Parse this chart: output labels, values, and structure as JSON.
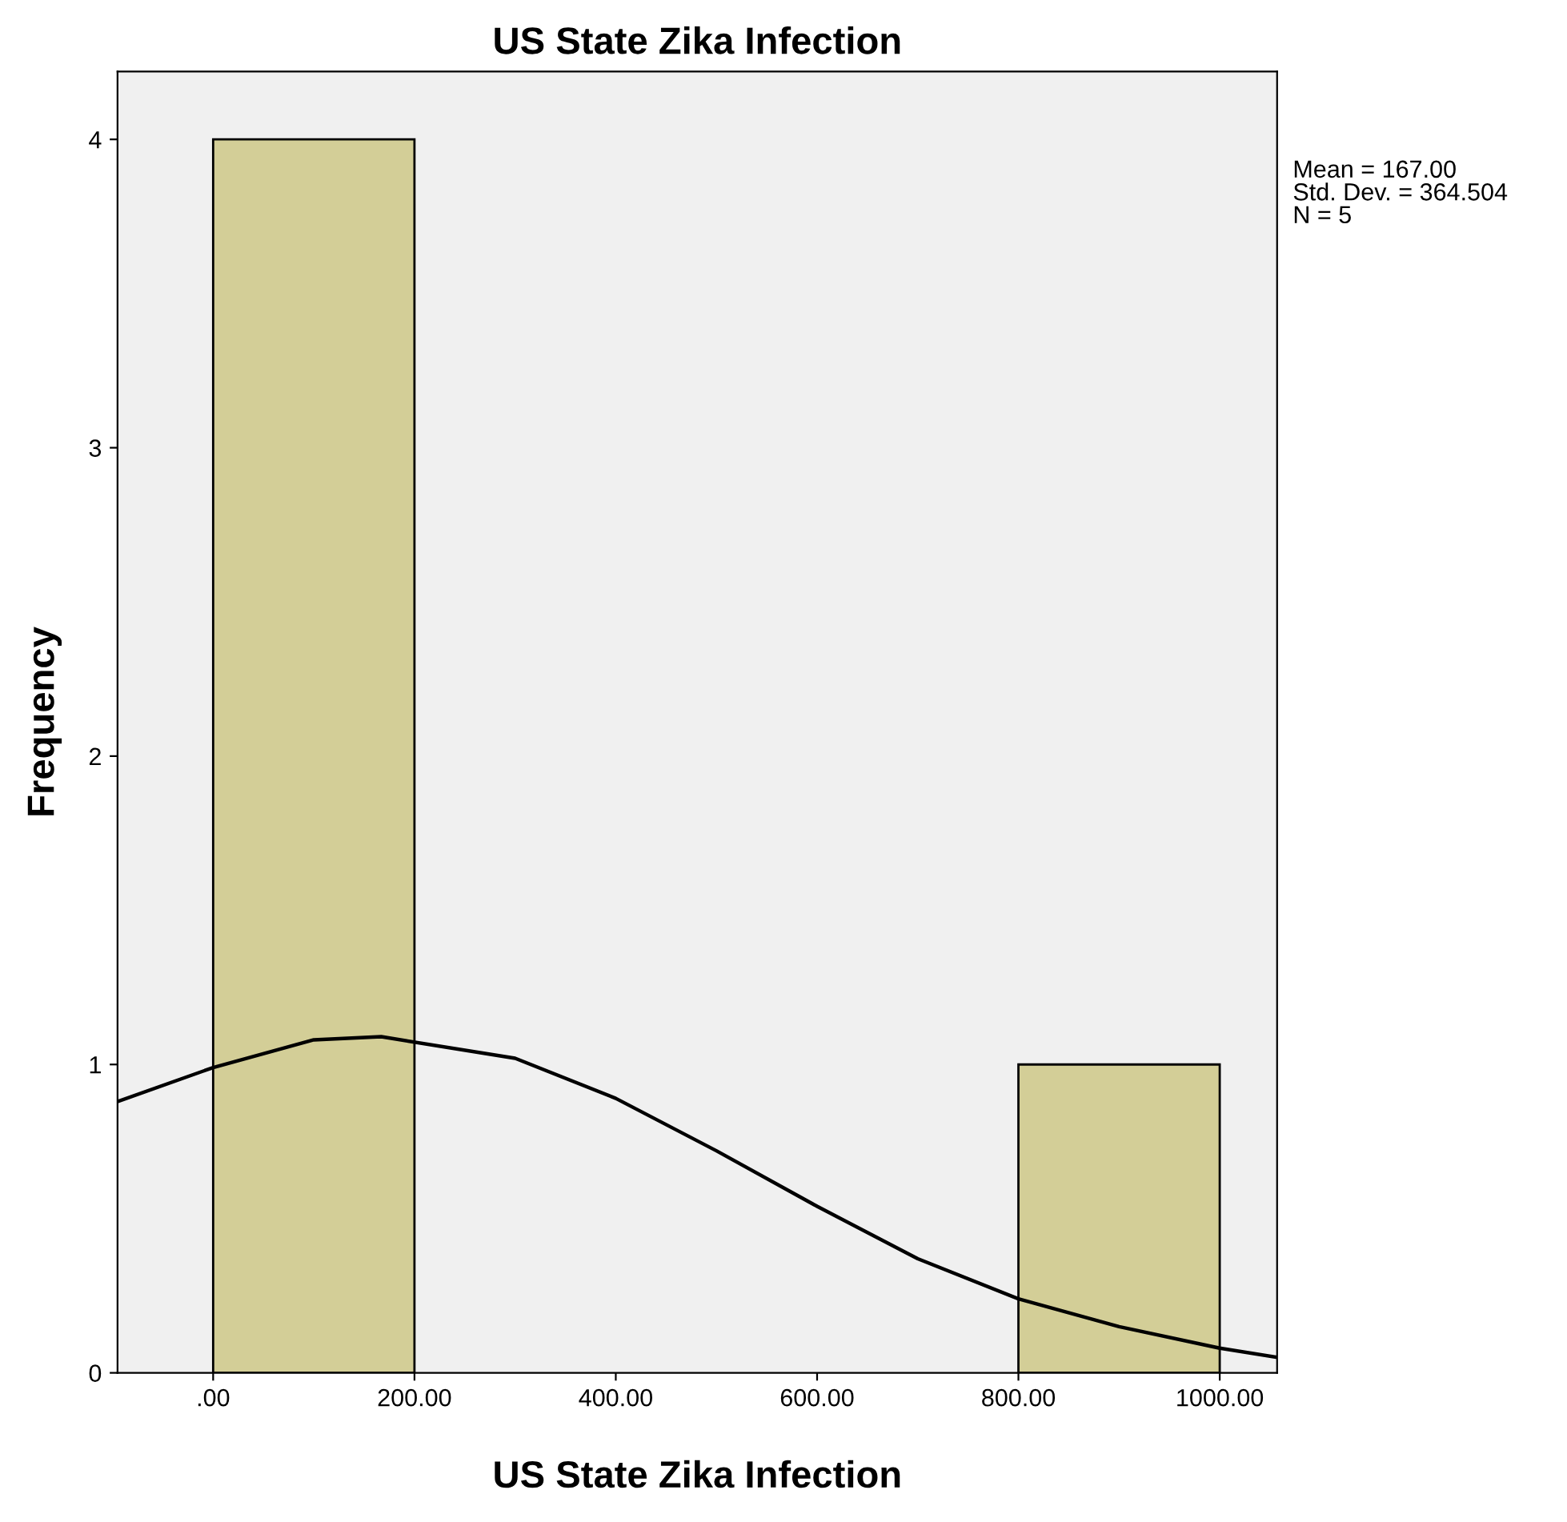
{
  "chart_data": {
    "type": "histogram",
    "title": "US State Zika Infection",
    "xlabel": "US State Zika Infection",
    "ylabel": "Frequency",
    "bins": [
      0,
      200,
      400,
      600,
      800,
      1000
    ],
    "values": [
      4,
      0,
      0,
      0,
      1
    ],
    "color": "#d3ce97",
    "series": [
      {
        "type": "line",
        "color": "#000000",
        "x": [
          -95,
          0,
          100,
          167,
          300,
          400,
          500,
          600,
          700,
          800,
          900,
          1000,
          1057
        ],
        "values": [
          0.88,
          0.99,
          1.08,
          1.09,
          1.02,
          0.89,
          0.72,
          0.54,
          0.37,
          0.24,
          0.15,
          0.08,
          0.05
        ]
      }
    ],
    "xlim": [
      -95,
      1057
    ],
    "ylim": [
      0,
      4.22
    ],
    "xticks": [
      {
        "value": 0,
        "label": ".00"
      },
      {
        "value": 200,
        "label": "200.00"
      },
      {
        "value": 400,
        "label": "400.00"
      },
      {
        "value": 600,
        "label": "600.00"
      },
      {
        "value": 800,
        "label": "800.00"
      },
      {
        "value": 1000,
        "label": "1000.00"
      }
    ],
    "yticks": [
      0,
      1,
      2,
      3,
      4
    ],
    "annotations": [
      "Mean = 167.00",
      "Std. Dev. = 364.504",
      "N = 5"
    ],
    "grid": false,
    "legend": false
  }
}
